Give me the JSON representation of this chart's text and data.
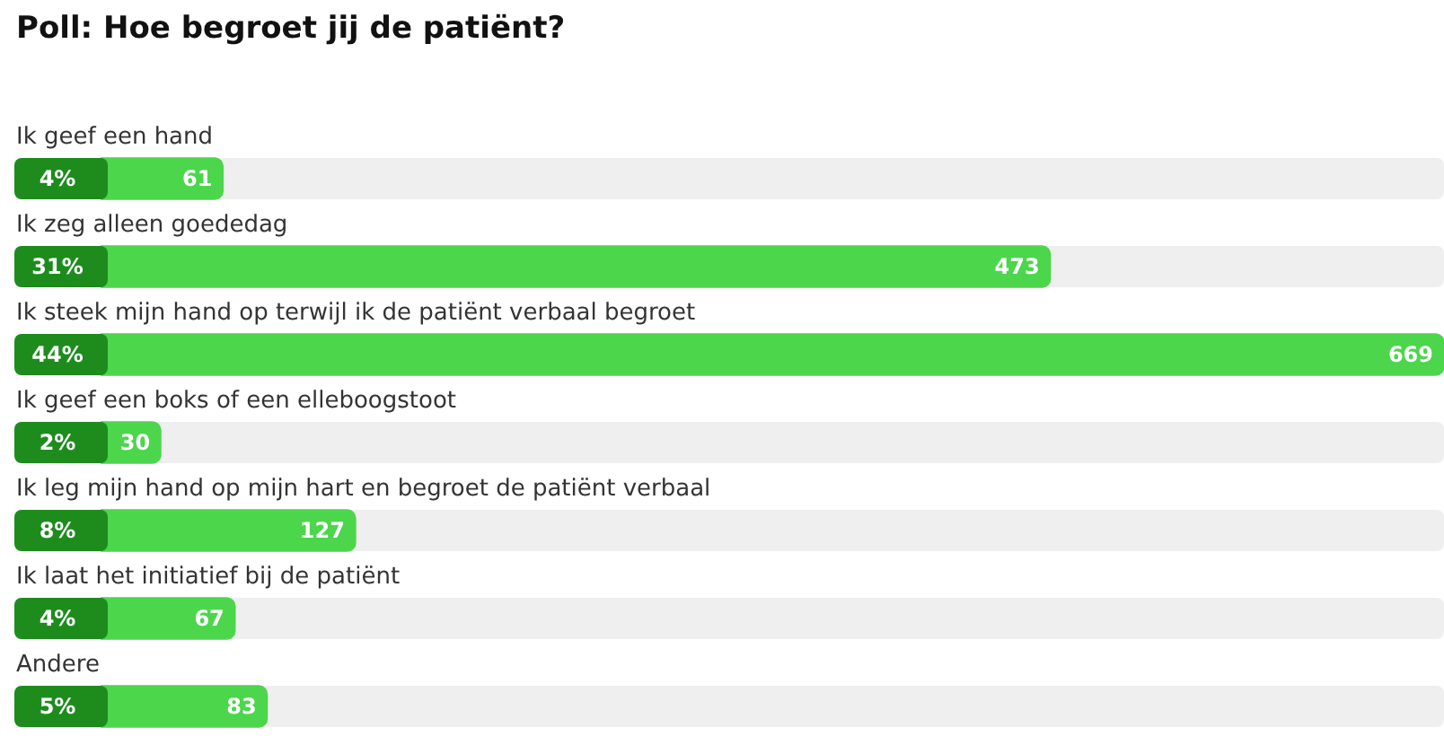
{
  "chart_data": {
    "type": "bar",
    "orientation": "horizontal",
    "title": "Poll: Hoe begroet jij de patiënt?",
    "categories": [
      "Ik geef een hand",
      "Ik zeg alleen goededag",
      "Ik steek mijn hand op terwijl ik de patiënt verbaal begroet",
      "Ik geef een boks of een elleboogstoot",
      "Ik leg mijn hand op mijn hart en begroet de patiënt verbaal",
      "Ik laat het initiatief bij de patiënt",
      "Andere"
    ],
    "values": [
      61,
      473,
      669,
      30,
      127,
      67,
      83
    ],
    "color": "#4cd64c",
    "xlim": [
      0,
      669
    ],
    "data_labels": true,
    "tick_labels": "y",
    "grid": false,
    "legend": false,
    "annotations": [
      "4%",
      "31%",
      "44%",
      "2%",
      "8%",
      "4%",
      "5%"
    ]
  }
}
